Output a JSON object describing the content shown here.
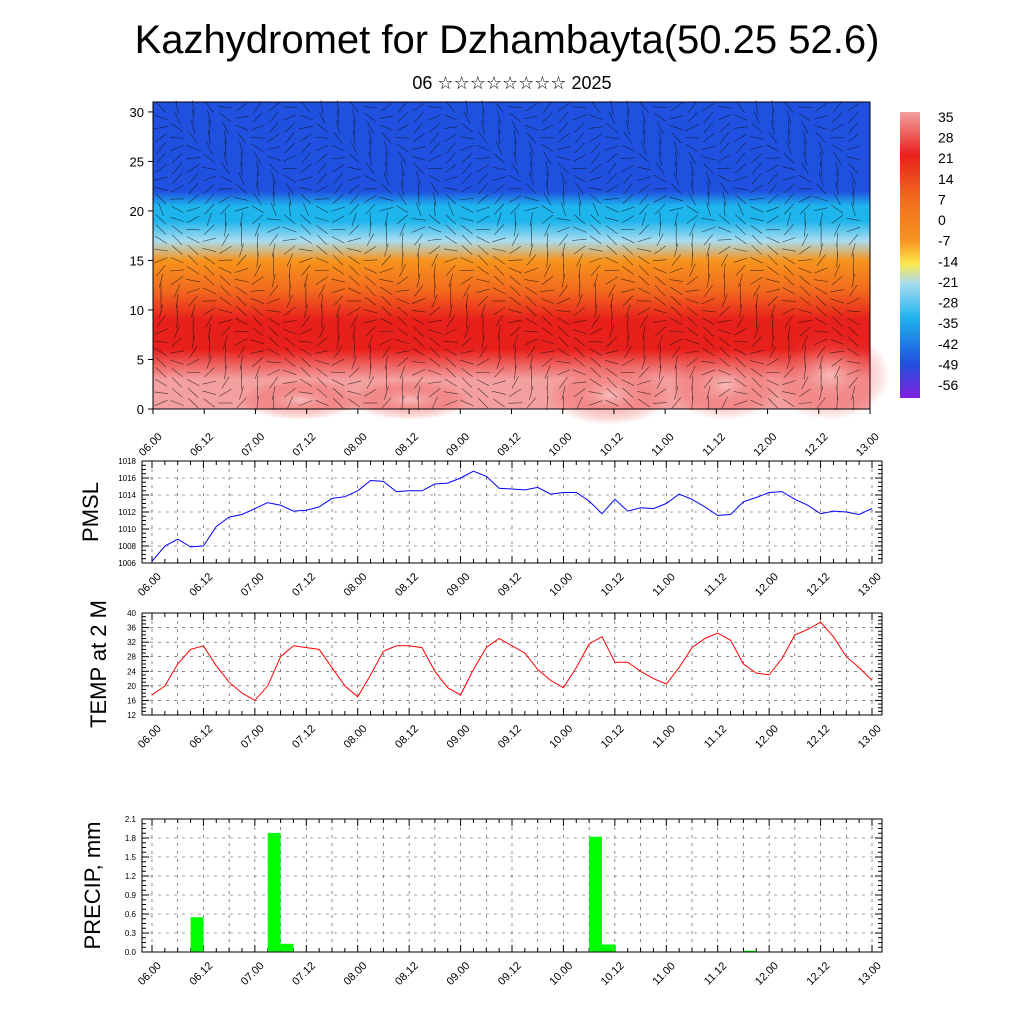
{
  "title": "Kazhydromet for Dzhambayta(50.25 52.6)",
  "subtitle": "06 ☆☆☆☆☆☆☆☆ 2025",
  "chart_data": [
    {
      "type": "heatmap",
      "name": "cross-section",
      "x_ticks": [
        "06.00",
        "06.12",
        "07.00",
        "07.12",
        "08.00",
        "08.12",
        "09.00",
        "09.12",
        "10.00",
        "10.12",
        "11.00",
        "11.12",
        "12.00",
        "12.12",
        "13.00"
      ],
      "ylim": [
        0,
        31
      ],
      "y_ticks": [
        "0",
        "5",
        "10",
        "15",
        "20",
        "25",
        "30"
      ],
      "colorbar_labels": [
        "35",
        "28",
        "21",
        "14",
        "7",
        "0",
        "-7",
        "-14",
        "-21",
        "-28",
        "-35",
        "-42",
        "-49",
        "-56"
      ],
      "vertical_profile": [
        {
          "level": 0,
          "value": 28
        },
        {
          "level": 3,
          "value": 26
        },
        {
          "level": 6,
          "value": 22
        },
        {
          "level": 9,
          "value": 16
        },
        {
          "level": 12,
          "value": 6
        },
        {
          "level": 15,
          "value": -6
        },
        {
          "level": 17,
          "value": -20
        },
        {
          "level": 19,
          "value": -35
        },
        {
          "level": 20.5,
          "value": -45
        },
        {
          "level": 22,
          "value": -53
        },
        {
          "level": 25,
          "value": -56
        },
        {
          "level": 28,
          "value": -55
        },
        {
          "level": 31,
          "value": -54
        }
      ],
      "colors": {
        "hot": "#f4a0a0",
        "red": "#e8201c",
        "orange": "#f7941d",
        "yellow": "#fce84c",
        "light_blue": "#a8dcf0",
        "cyan": "#1eb4ec",
        "blue": "#2050e0",
        "violet": "#8020e0"
      },
      "grid": true
    },
    {
      "type": "line",
      "name": "pmsl",
      "ylabel": "PMSL",
      "x_ticks": [
        "06.00",
        "06.12",
        "07.00",
        "07.12",
        "08.00",
        "08.12",
        "09.00",
        "09.12",
        "10.00",
        "10.12",
        "11.00",
        "11.12",
        "12.00",
        "12.12",
        "13.00"
      ],
      "ylim": [
        1006,
        1018
      ],
      "y_ticks": [
        "1006",
        "1008",
        "1010",
        "1012",
        "1014",
        "1016",
        "1018"
      ],
      "series": [
        {
          "color": "#0000ff",
          "values": [
            1006.2,
            1008.0,
            1008.8,
            1007.9,
            1008.0,
            1010.3,
            1011.4,
            1011.7,
            1012.4,
            1013.1,
            1012.8,
            1012.1,
            1012.2,
            1012.6,
            1013.6,
            1013.8,
            1014.5,
            1015.7,
            1015.6,
            1014.4,
            1014.5,
            1014.5,
            1015.3,
            1015.4,
            1016.0,
            1016.8,
            1016.2,
            1014.8,
            1014.7,
            1014.6,
            1014.9,
            1014.1,
            1014.3,
            1014.3,
            1013.3,
            1011.8,
            1013.5,
            1012.1,
            1012.5,
            1012.4,
            1013.0,
            1014.1,
            1013.5,
            1012.6,
            1011.6,
            1011.7,
            1013.2,
            1013.7,
            1014.3,
            1014.4,
            1013.5,
            1012.8,
            1011.8,
            1012.1,
            1012.0,
            1011.7,
            1012.4
          ]
        }
      ],
      "grid": true
    },
    {
      "type": "line",
      "name": "temp2m",
      "ylabel": "TEMP at 2 M",
      "x_ticks": [
        "06.00",
        "06.12",
        "07.00",
        "07.12",
        "08.00",
        "08.12",
        "09.00",
        "09.12",
        "10.00",
        "10.12",
        "11.00",
        "11.12",
        "12.00",
        "12.12",
        "13.00"
      ],
      "ylim": [
        12,
        40
      ],
      "y_ticks": [
        "12",
        "16",
        "20",
        "24",
        "28",
        "32",
        "36",
        "40"
      ],
      "series": [
        {
          "color": "#ff0000",
          "values": [
            17.5,
            20,
            26,
            30,
            31,
            25.5,
            21,
            18,
            16,
            20,
            28,
            31,
            30.5,
            30,
            25,
            20,
            17,
            23,
            29.5,
            31,
            31,
            30.5,
            24,
            19.5,
            17.5,
            24.5,
            30.5,
            33,
            31,
            29,
            24.5,
            21.5,
            19.5,
            25,
            31.5,
            33.5,
            26.5,
            26.5,
            24,
            22,
            20.5,
            25,
            30.5,
            33,
            34.5,
            32.5,
            26,
            23.5,
            23,
            27.5,
            34,
            35.5,
            37.5,
            33.5,
            28,
            25,
            21.5
          ]
        }
      ],
      "grid": true
    },
    {
      "type": "bar",
      "name": "precip",
      "ylabel": "PRECIP, mm",
      "x_ticks": [
        "06.00",
        "06.12",
        "07.00",
        "07.12",
        "08.00",
        "08.12",
        "09.00",
        "09.12",
        "10.00",
        "10.12",
        "11.00",
        "11.12",
        "12.00",
        "12.12",
        "13.00"
      ],
      "ylim": [
        0,
        2.1
      ],
      "y_ticks": [
        "0.0",
        "0.3",
        "0.6",
        "0.9",
        "1.2",
        "1.5",
        "1.8",
        "2.1"
      ],
      "bars": [
        {
          "time_h": 12,
          "value": 0.55
        },
        {
          "time_h": 30,
          "value": 1.88
        },
        {
          "time_h": 33,
          "value": 0.13
        },
        {
          "time_h": 105,
          "value": 1.82
        },
        {
          "time_h": 108,
          "value": 0.12
        },
        {
          "time_h": 141,
          "value": 0.02
        }
      ],
      "bar_color": "#00ff00",
      "grid": true
    }
  ]
}
